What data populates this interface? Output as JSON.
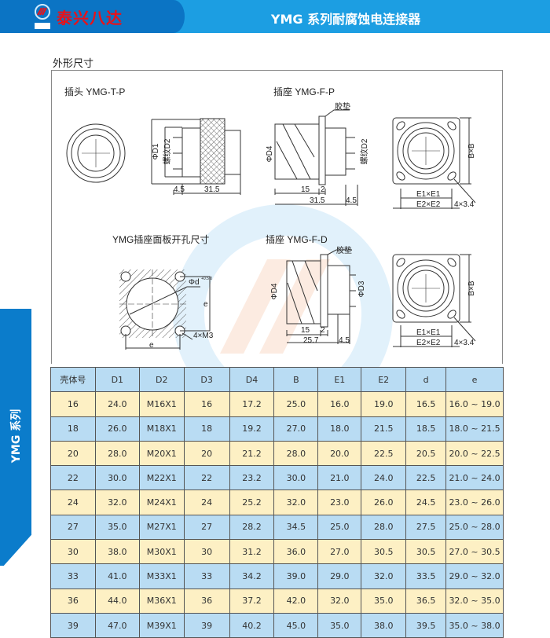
{
  "header": {
    "brand": "泰兴八达",
    "logo_text": "B D",
    "title": "YMG 系列耐腐蚀电连接器",
    "colors": {
      "bar": "#1c9ee2",
      "bar_dark": "#0b74c4",
      "brand": "#e8121a"
    }
  },
  "section_title": "外形尺寸",
  "side_tab": {
    "label": "YMG 系列",
    "color": "#0b7ccb"
  },
  "drawings": {
    "plug": {
      "title": "插头 YMG-T-P",
      "d1": "ΦD1",
      "d2": "螺纹D2",
      "dim_a": "4.5",
      "dim_b": "31.5"
    },
    "socket_fp": {
      "title": "插座 YMG-F-P",
      "gasket": "胶垫",
      "d4": "ΦD4",
      "d2": "螺纹D2",
      "dim_15": "15",
      "dim_2": "2",
      "dim_len": "31.5",
      "dim_45": "4.5",
      "bxb": "B×B",
      "e1": "E1×E1",
      "e2": "E2×E2",
      "holes": "4×3.4"
    },
    "panel": {
      "title": "YMG插座面板开孔尺寸",
      "phi_d": "Φd",
      "tol": "+0.5 0",
      "e_v": "e",
      "e_h": "e",
      "holes": "4×M3"
    },
    "socket_fd": {
      "title": "插座 YMG-F-D",
      "gasket": "胶垫",
      "d4": "ΦD4",
      "d3": "ΦD3",
      "dim_15": "15",
      "dim_2": "2",
      "dim_len": "25.7",
      "dim_45": "4.5",
      "bxb": "B×B",
      "e1": "E1×E1",
      "e2": "E2×E2",
      "holes": "4×3.4"
    }
  },
  "table": {
    "headers": [
      "壳体号",
      "D1",
      "D2",
      "D3",
      "D4",
      "B",
      "E1",
      "E2",
      "d",
      "e"
    ],
    "rows": [
      [
        "16",
        "24.0",
        "M16X1",
        "16",
        "17.2",
        "25.0",
        "16.0",
        "19.0",
        "16.5",
        "16.0 ~ 19.0"
      ],
      [
        "18",
        "26.0",
        "M18X1",
        "18",
        "19.2",
        "27.0",
        "18.0",
        "21.5",
        "18.5",
        "18.0 ~ 21.5"
      ],
      [
        "20",
        "28.0",
        "M20X1",
        "20",
        "21.2",
        "28.0",
        "20.0",
        "22.5",
        "20.5",
        "20.0 ~ 22.5"
      ],
      [
        "22",
        "30.0",
        "M22X1",
        "22",
        "23.2",
        "30.0",
        "21.0",
        "24.0",
        "22.5",
        "21.0 ~ 24.0"
      ],
      [
        "24",
        "32.0",
        "M24X1",
        "24",
        "25.2",
        "32.0",
        "23.0",
        "26.0",
        "24.5",
        "23.0 ~ 26.0"
      ],
      [
        "27",
        "35.0",
        "M27X1",
        "27",
        "28.2",
        "34.5",
        "25.0",
        "28.0",
        "27.5",
        "25.0 ~ 28.0"
      ],
      [
        "30",
        "38.0",
        "M30X1",
        "30",
        "31.2",
        "36.0",
        "27.0",
        "30.5",
        "30.5",
        "27.0 ~ 30.5"
      ],
      [
        "33",
        "41.0",
        "M33X1",
        "33",
        "34.2",
        "39.0",
        "29.0",
        "32.0",
        "33.5",
        "29.0 ~ 32.0"
      ],
      [
        "36",
        "44.0",
        "M36X1",
        "36",
        "37.2",
        "42.0",
        "32.0",
        "35.0",
        "36.5",
        "32.0 ~ 35.0"
      ],
      [
        "39",
        "47.0",
        "M39X1",
        "39",
        "40.2",
        "45.0",
        "35.0",
        "38.0",
        "39.5",
        "35.0 ~ 38.0"
      ]
    ],
    "colors": {
      "header": "#b9dcf3",
      "odd": "#fdf0c4",
      "even": "#b9dcf3"
    }
  }
}
